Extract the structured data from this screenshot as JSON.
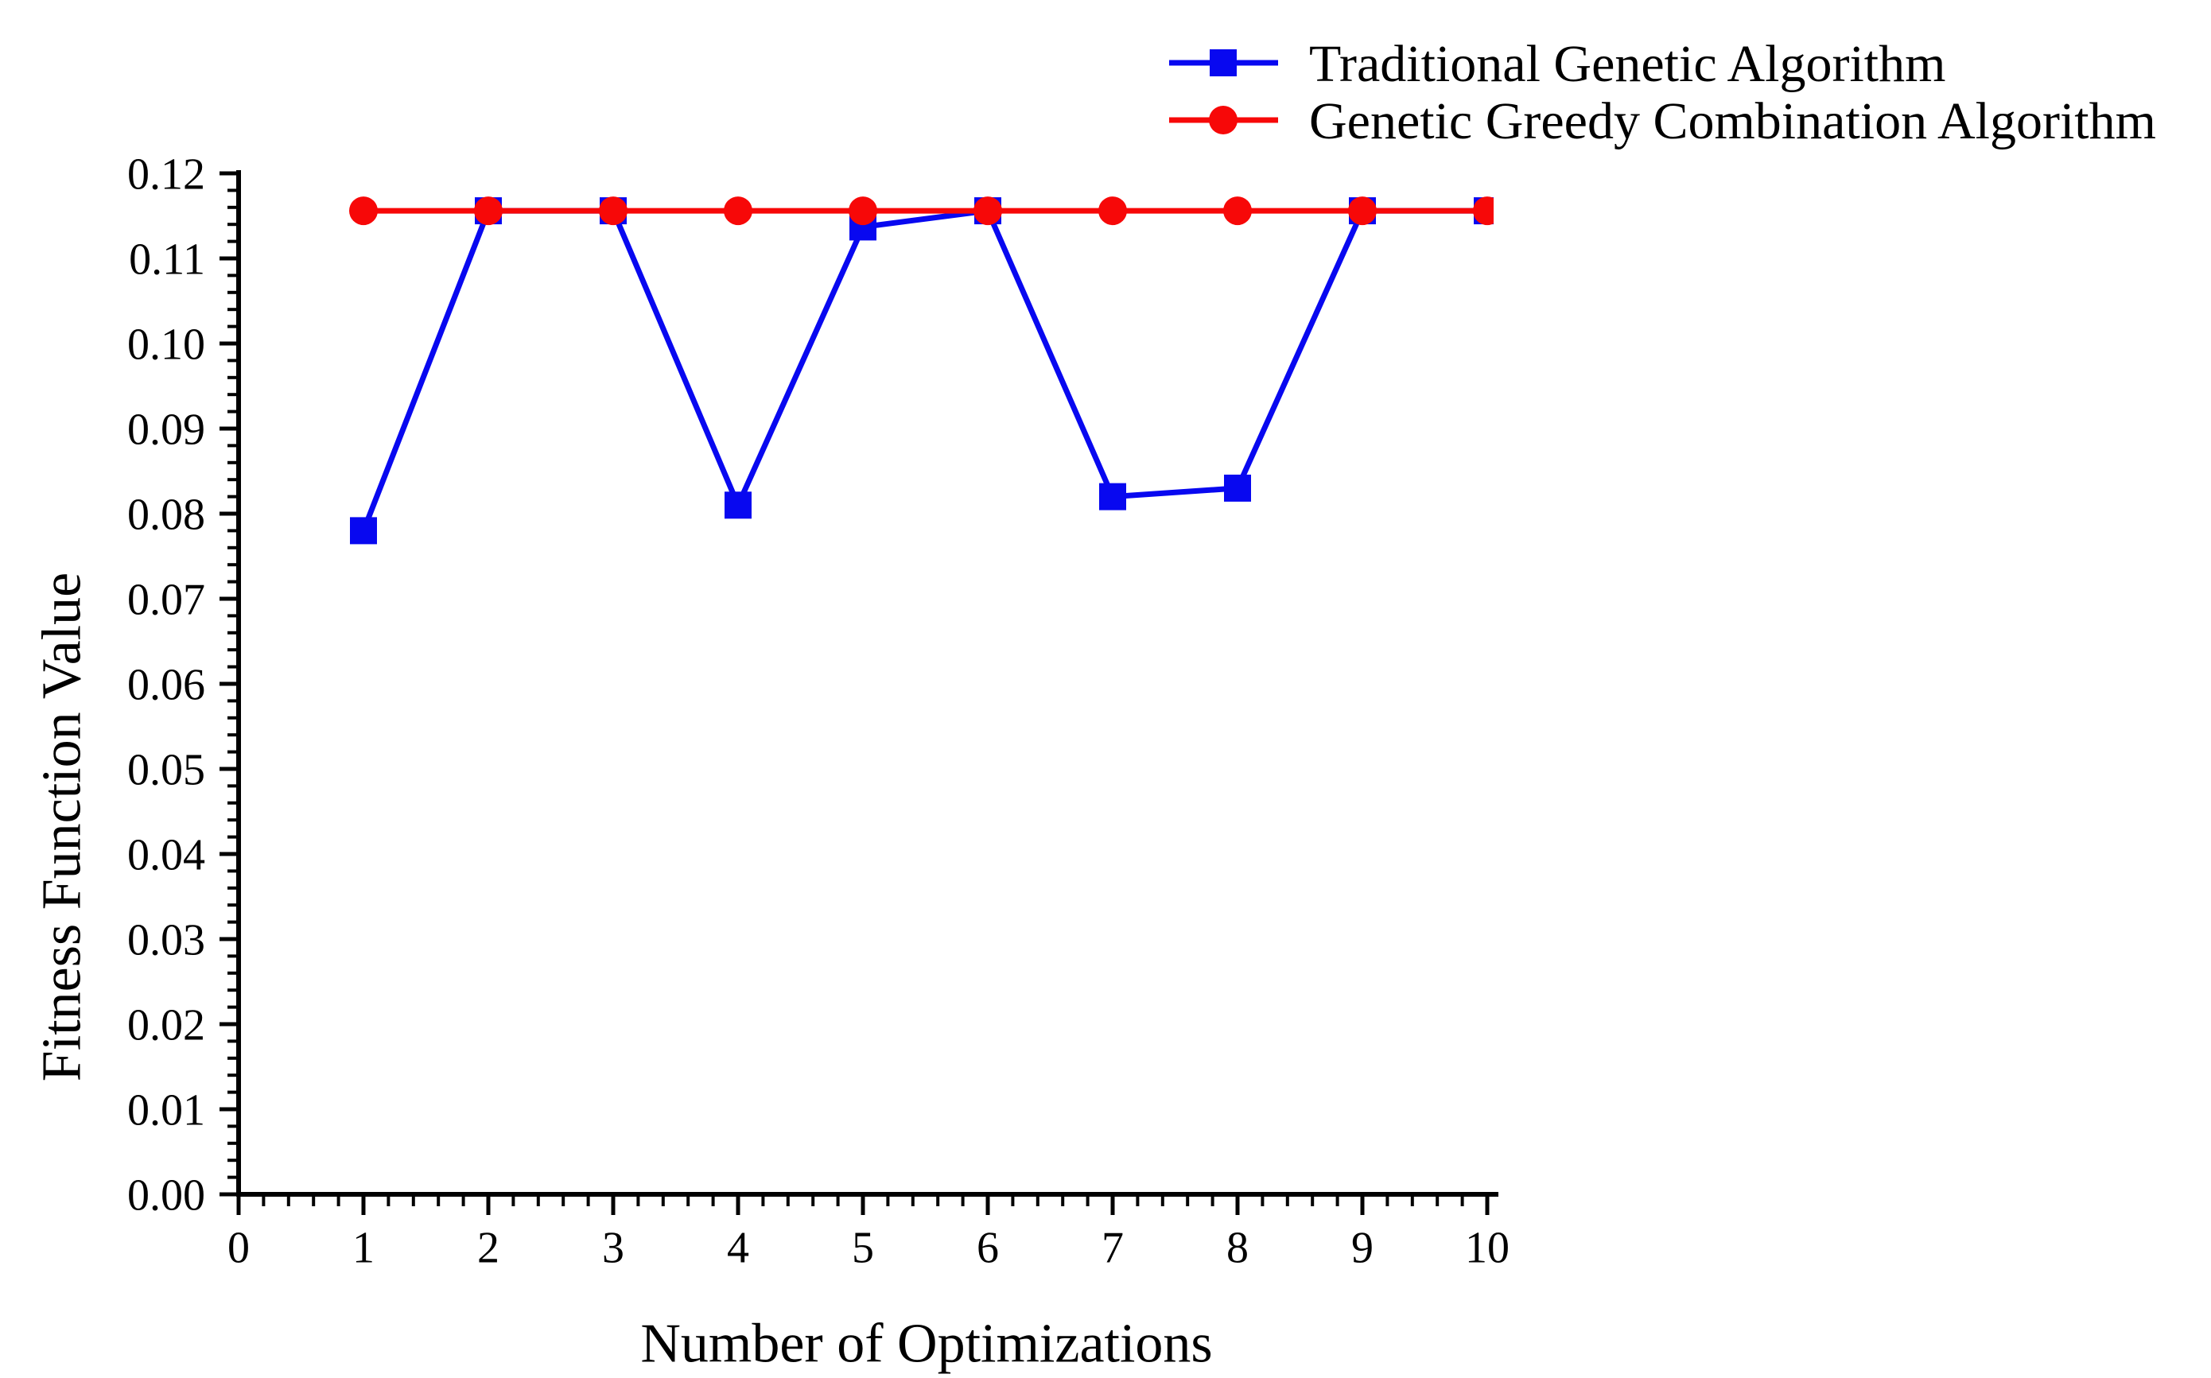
{
  "chart_data": {
    "type": "line",
    "title": "",
    "xlabel": "Number of Optimizations",
    "ylabel": "Fitness Function Value",
    "xlim": [
      0,
      10
    ],
    "ylim": [
      0.0,
      0.12
    ],
    "grid": false,
    "legend_position": "top-right",
    "x": [
      1,
      2,
      3,
      4,
      5,
      6,
      7,
      8,
      9,
      10
    ],
    "x_tick_labels": [
      "0",
      "1",
      "2",
      "3",
      "4",
      "5",
      "6",
      "7",
      "8",
      "9",
      "10"
    ],
    "y_tick_labels": [
      "0.00",
      "0.01",
      "0.02",
      "0.03",
      "0.04",
      "0.05",
      "0.06",
      "0.07",
      "0.08",
      "0.09",
      "0.10",
      "0.11",
      "0.12"
    ],
    "x_major_step": 1,
    "x_minor_step": 0.2,
    "y_major_step": 0.01,
    "y_minor_step": 0.002,
    "series": [
      {
        "name": "Traditional Genetic Algorithm",
        "color": "#0808F0",
        "marker": "square",
        "values": [
          0.078,
          0.1156,
          0.1156,
          0.081,
          0.1137,
          0.1156,
          0.082,
          0.083,
          0.1156,
          0.1156
        ]
      },
      {
        "name": "Genetic Greedy Combination Algorithm",
        "color": "#F70808",
        "marker": "circle",
        "values": [
          0.1156,
          0.1156,
          0.1156,
          0.1156,
          0.1156,
          0.1156,
          0.1156,
          0.1156,
          0.1156,
          0.1156
        ]
      }
    ],
    "axis_color": "#000000"
  }
}
